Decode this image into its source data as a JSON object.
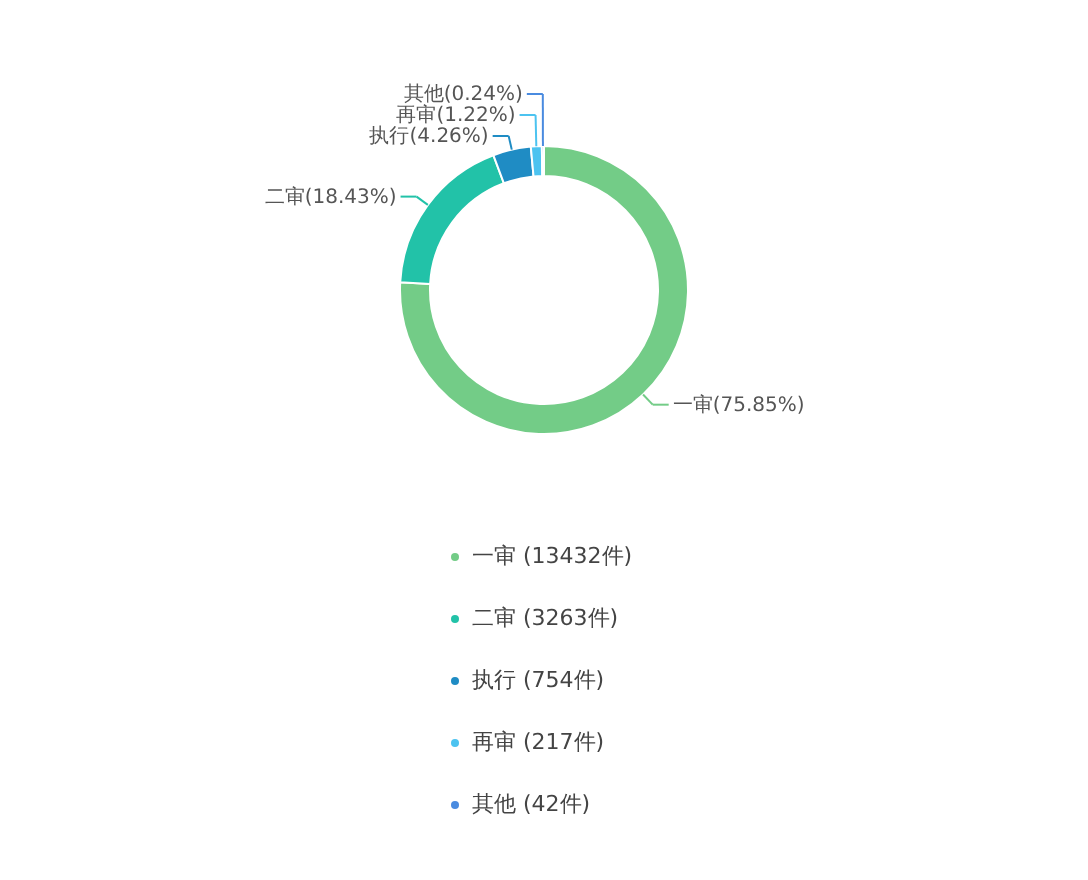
{
  "chart_data": {
    "type": "donut",
    "categories": [
      "一审 (13432件)",
      "二审 (3263件)",
      "执行 (754件)",
      "再审 (217件)",
      "其他 (42件)"
    ],
    "values": [
      13432,
      3263,
      754,
      217,
      42
    ],
    "colors": [
      "#73cc87",
      "#22c2a8",
      "#1f8cc4",
      "#4cc3f0",
      "#4a8be0"
    ],
    "value_labels": [
      "一审(75.85%)",
      "二审(18.43%)",
      "执行(4.26%)",
      "再审(1.22%)",
      "其他(0.24%)"
    ],
    "legend": "bottom"
  }
}
